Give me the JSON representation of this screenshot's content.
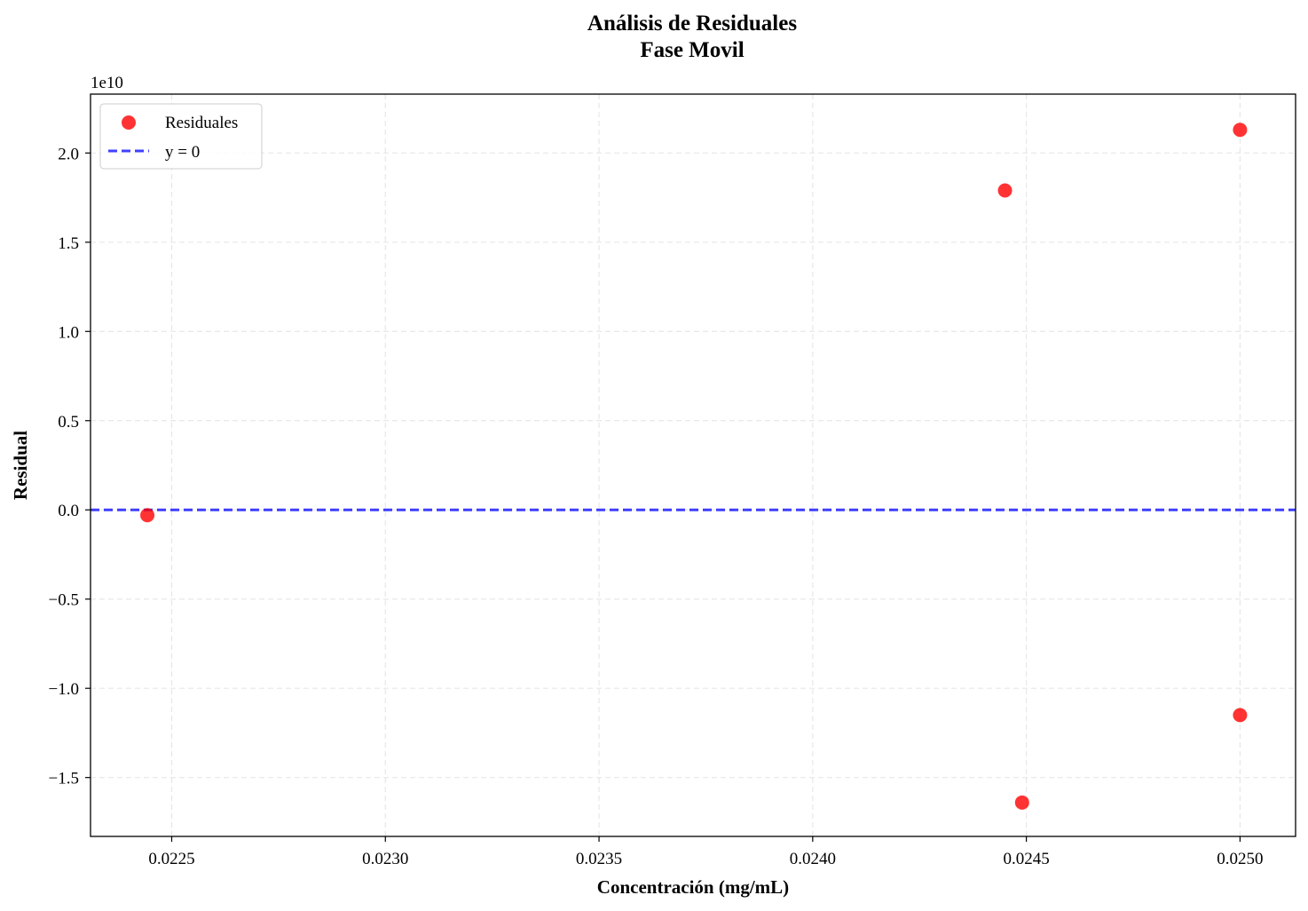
{
  "chart_data": {
    "type": "scatter",
    "title_line1": "Análisis de Residuales",
    "title_line2": "Fase Movil",
    "xlabel": "Concentración (mg/mL)",
    "ylabel": "Residual",
    "y_offset_label": "1e10",
    "xlim": [
      0.02231,
      0.02513
    ],
    "ylim": [
      -1.83,
      2.33
    ],
    "y_scale_factor": 10000000000,
    "x_ticks": [
      0.0225,
      0.023,
      0.0235,
      0.024,
      0.0245,
      0.025
    ],
    "x_tick_labels": [
      "0.0225",
      "0.0230",
      "0.0235",
      "0.0240",
      "0.0245",
      "0.0250"
    ],
    "y_ticks": [
      -1.5,
      -1.0,
      -0.5,
      0.0,
      0.5,
      1.0,
      1.5,
      2.0
    ],
    "y_tick_labels": [
      "−1.5",
      "−1.0",
      "−0.5",
      "0.0",
      "0.5",
      "1.0",
      "1.5",
      "2.0"
    ],
    "grid": true,
    "legend": {
      "placement": "top-left",
      "entries": [
        "Residuales",
        "y = 0"
      ]
    },
    "series": [
      {
        "name": "Residuales",
        "kind": "scatter",
        "color": "#ff0000",
        "points": [
          {
            "x": 0.022443,
            "y": -0.03
          },
          {
            "x": 0.02445,
            "y": 1.79
          },
          {
            "x": 0.02449,
            "y": -1.64
          },
          {
            "x": 0.025,
            "y": 2.13
          },
          {
            "x": 0.025,
            "y": -1.15
          }
        ]
      },
      {
        "name": "y = 0",
        "kind": "hline",
        "color": "#0000ff",
        "y": 0
      }
    ]
  }
}
